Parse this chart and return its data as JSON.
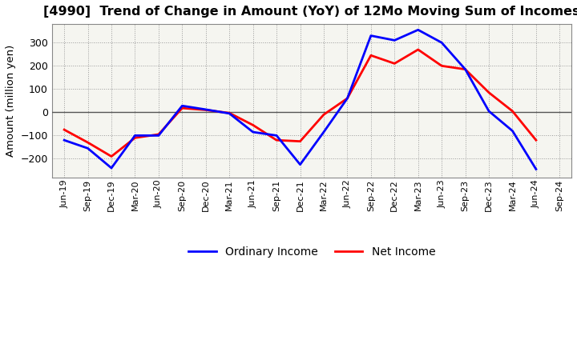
{
  "title": "[4990]  Trend of Change in Amount (YoY) of 12Mo Moving Sum of Incomes",
  "ylabel": "Amount (million yen)",
  "x_labels": [
    "Jun-19",
    "Sep-19",
    "Dec-19",
    "Mar-20",
    "Jun-20",
    "Sep-20",
    "Dec-20",
    "Mar-21",
    "Jun-21",
    "Sep-21",
    "Dec-21",
    "Mar-22",
    "Jun-22",
    "Sep-22",
    "Dec-22",
    "Mar-23",
    "Jun-23",
    "Sep-23",
    "Dec-23",
    "Mar-24",
    "Jun-24",
    "Sep-24"
  ],
  "ordinary_income": [
    -120,
    -155,
    -240,
    -100,
    -100,
    28,
    12,
    -5,
    -85,
    -100,
    -225,
    -85,
    60,
    330,
    310,
    355,
    300,
    185,
    5,
    -80,
    -245,
    null
  ],
  "net_income": [
    -75,
    -130,
    -190,
    -110,
    -95,
    18,
    10,
    -3,
    -55,
    -120,
    -125,
    -10,
    60,
    245,
    210,
    270,
    200,
    185,
    85,
    5,
    -120,
    null
  ],
  "ordinary_color": "#0000ff",
  "net_color": "#ff0000",
  "ylim": [
    -280,
    380
  ],
  "yticks": [
    -200,
    -100,
    0,
    100,
    200,
    300
  ],
  "plot_bg_color": "#f5f5f0",
  "fig_bg_color": "#ffffff",
  "grid_color": "#999999",
  "zero_line_color": "#555555",
  "spine_color": "#888888"
}
